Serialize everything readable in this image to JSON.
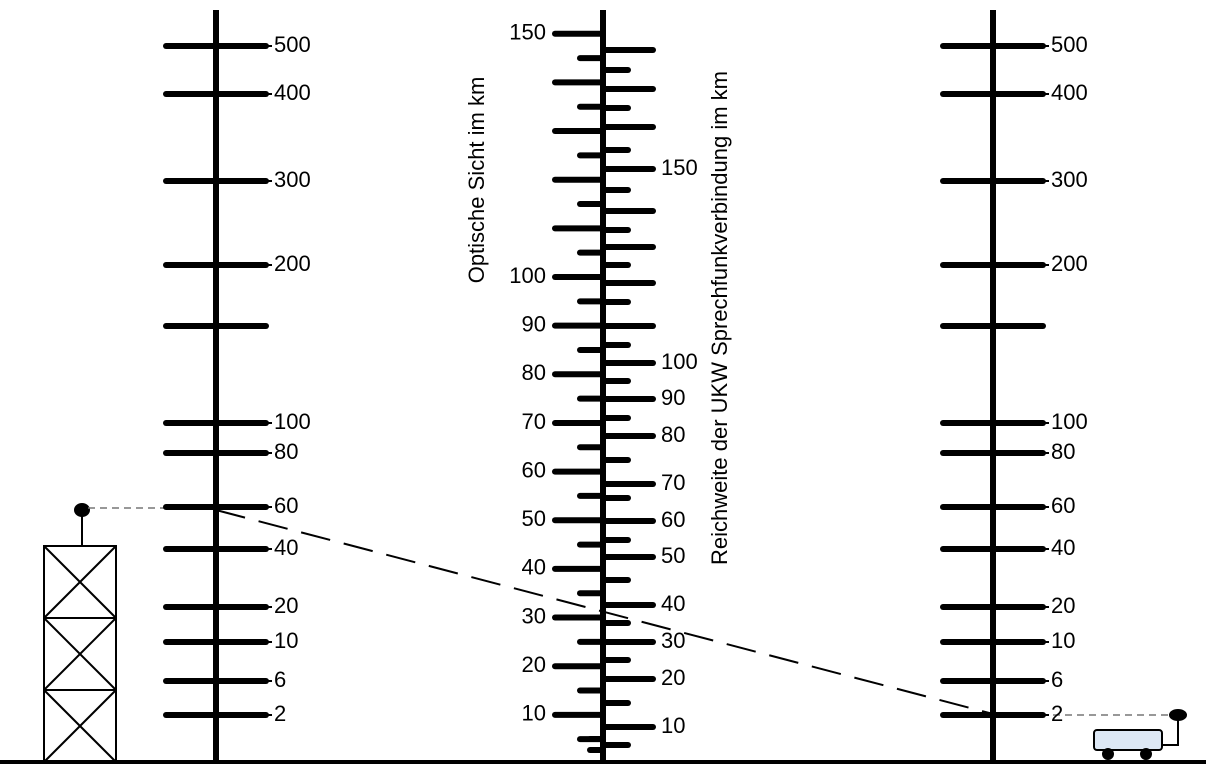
{
  "scales": {
    "left": {
      "labels": [
        500,
        400,
        300,
        200,
        100,
        80,
        60,
        40,
        20,
        10,
        6,
        2
      ]
    },
    "middle_left": {
      "title": "Optische Sicht im km",
      "labels": [
        150,
        100,
        90,
        80,
        70,
        60,
        50,
        40,
        30,
        20,
        10
      ]
    },
    "middle_right": {
      "title": "Reichweite der UKW Sprechfunkverbindung im km",
      "labels": [
        150,
        100,
        90,
        80,
        70,
        60,
        50,
        40,
        30,
        20,
        10
      ]
    },
    "right": {
      "labels": [
        500,
        400,
        300,
        200,
        100,
        80,
        60,
        40,
        20,
        10,
        6,
        2
      ]
    }
  }
}
